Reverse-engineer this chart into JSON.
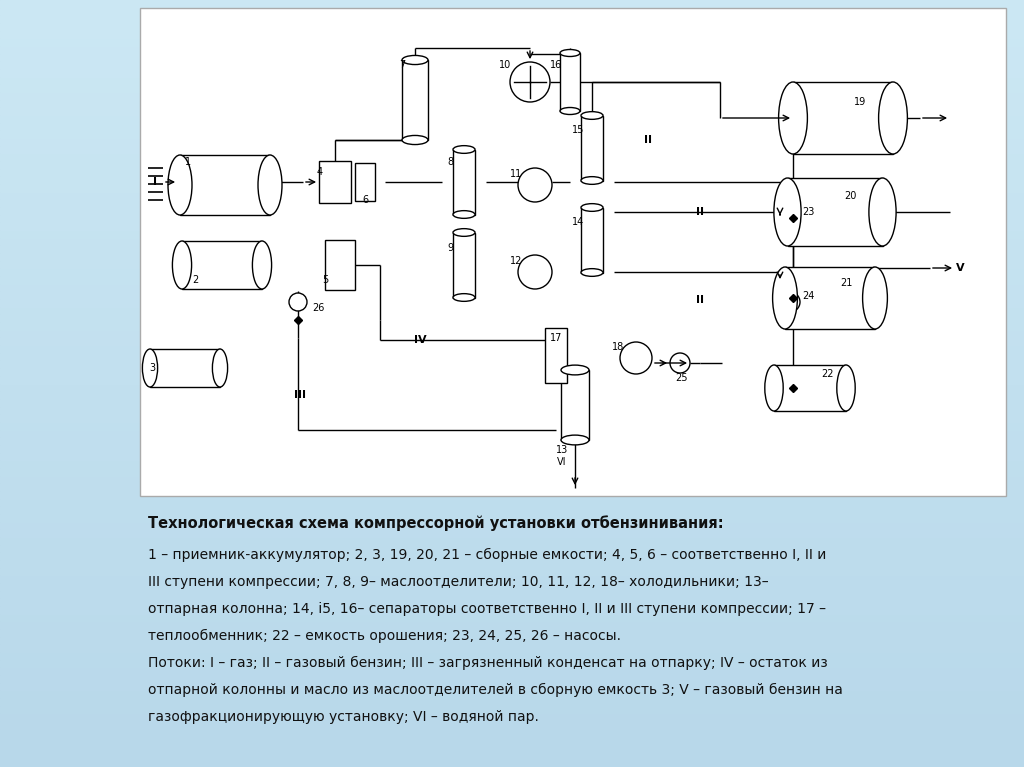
{
  "bg_color": "#b8d8ea",
  "diagram_bg": "white",
  "diagram_border": "#cccccc",
  "title_bold": "Технологическая схема компрессорной установки отбензинивания:",
  "description_lines": [
    "1 – приемник-аккумулятор; 2, 3, 19, 20, 21 – сборные емкости; 4, 5, 6 – соответственно I, II и",
    "III ступени компрессии; 7, 8, 9– маслоотделители; 10, 11, 12, 18– холодильники; 13–",
    "отпарная колонна; 14, i5, 16– сепараторы соответственно I, II и III ступени компрессии; 17 –",
    "теплообменник; 22 – емкость орошения; 23, 24, 25, 26 – насосы.",
    "Потоки: I – газ; II – газовый бензин; III – загрязненный конденсат на отпарку; IV – остаток из",
    "отпарной колонны и масло из маслоотделителей в сборную емкость 3; V – газовый бензин на",
    "газофракционирующую установку; VI – водяной пар."
  ],
  "text_color": "#111111"
}
